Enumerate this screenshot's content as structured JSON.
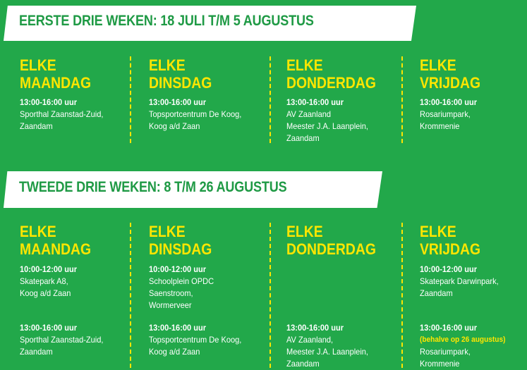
{
  "sections": [
    {
      "title": "EERSTE DRIE WEKEN: 18 JULI T/M 5 AUGUSTUS",
      "days": [
        {
          "line1": "ELKE",
          "line2": "MAANDAG",
          "blocks": [
            {
              "time": "13:00-16:00 uur",
              "lines": [
                "Sporthal Zaanstad-Zuid,",
                "Zaandam"
              ]
            }
          ]
        },
        {
          "line1": "ELKE",
          "line2": "DINSDAG",
          "blocks": [
            {
              "time": "13:00-16:00 uur",
              "lines": [
                "Topsportcentrum De Koog,",
                "Koog a/d Zaan"
              ]
            }
          ]
        },
        {
          "line1": "ELKE",
          "line2": "DONDERDAG",
          "blocks": [
            {
              "time": "13:00-16:00 uur",
              "lines": [
                "AV Zaanland",
                "Meester J.A. Laanplein,",
                "Zaandam"
              ]
            }
          ]
        },
        {
          "line1": "ELKE",
          "line2": "VRIJDAG",
          "blocks": [
            {
              "time": "13:00-16:00 uur",
              "lines": [
                "Rosariumpark,",
                "Krommenie"
              ]
            }
          ]
        }
      ]
    },
    {
      "title": "TWEEDE DRIE WEKEN: 8 T/M 26 AUGUSTUS",
      "days": [
        {
          "line1": "ELKE",
          "line2": "MAANDAG",
          "blocks": [
            {
              "time": "10:00-12:00 uur",
              "lines": [
                "Skatepark A8,",
                "Koog a/d Zaan"
              ]
            },
            {
              "time": "13:00-16:00 uur",
              "lines": [
                "Sporthal Zaanstad-Zuid,",
                "Zaandam"
              ]
            }
          ]
        },
        {
          "line1": "ELKE",
          "line2": "DINSDAG",
          "blocks": [
            {
              "time": "10:00-12:00 uur",
              "lines": [
                "Schoolplein OPDC",
                "Saenstroom,",
                "Wormerveer"
              ]
            },
            {
              "time": "13:00-16:00 uur",
              "lines": [
                "Topsportcentrum De Koog,",
                "Koog a/d Zaan"
              ]
            }
          ]
        },
        {
          "line1": "ELKE",
          "line2": "DONDERDAG",
          "blocks": [
            {
              "time": "13:00-16:00 uur",
              "lines": [
                "AV Zaanland,",
                "Meester J.A. Laanplein,",
                "Zaandam"
              ]
            }
          ]
        },
        {
          "line1": "ELKE",
          "line2": "VRIJDAG",
          "blocks": [
            {
              "time": "10:00-12:00 uur",
              "lines": [
                "Skatepark Darwinpark,",
                "Zaandam"
              ]
            },
            {
              "time": "13:00-16:00 uur",
              "note": "(behalve op 26 augustus)",
              "lines": [
                "Rosariumpark,",
                "Krommenie"
              ]
            }
          ]
        }
      ]
    }
  ],
  "colors": {
    "background": "#22a84a",
    "accent": "#ffe600",
    "banner": "#ffffff",
    "banner_text": "#1f9a45"
  }
}
